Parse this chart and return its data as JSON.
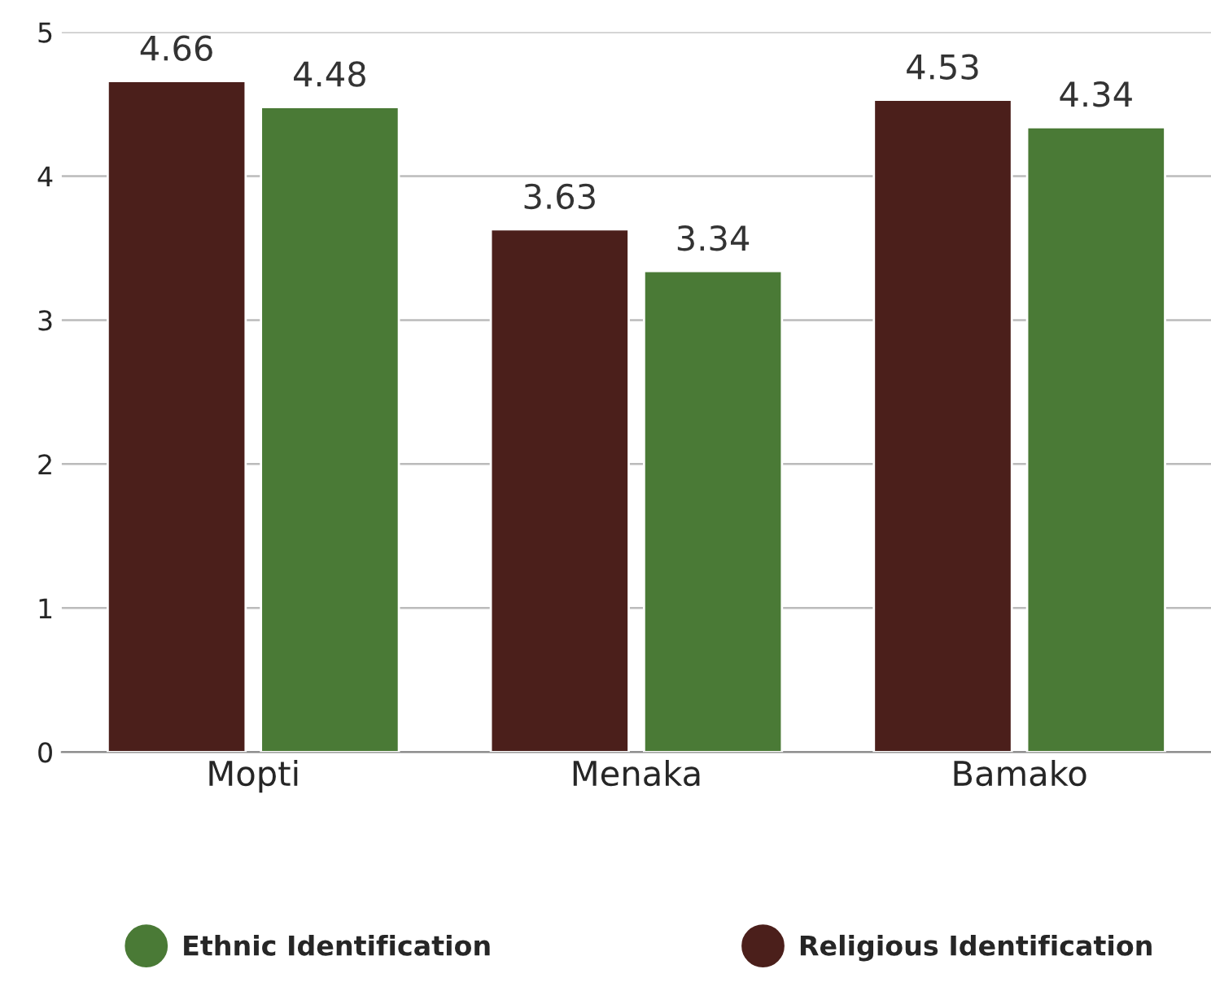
{
  "chart_data": {
    "type": "bar",
    "categories": [
      "Mopti",
      "Menaka",
      "Bamako"
    ],
    "series": [
      {
        "name": "Religious Identification",
        "color": "#4b1f1b",
        "values": [
          4.66,
          3.63,
          4.53
        ]
      },
      {
        "name": "Ethnic Identification",
        "color": "#4a7a36",
        "values": [
          4.48,
          3.34,
          4.34
        ]
      }
    ],
    "ylim": [
      0,
      5
    ],
    "yticks": [
      0,
      1,
      2,
      3,
      4,
      5
    ],
    "grid": "y",
    "legend": "bottom",
    "data_labels": true
  }
}
